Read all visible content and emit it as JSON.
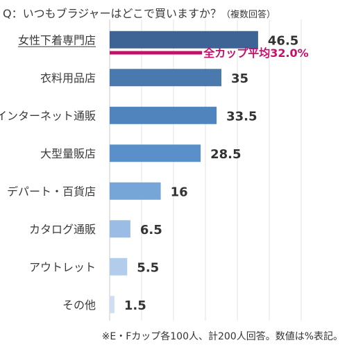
{
  "question": "Q：いつもブラジャーはどこで買いますか？",
  "question_note": "（複数回答）",
  "footnote": "※E・Fカップ各100人、計200人回答。数値は%表記。",
  "chart_data": {
    "type": "bar",
    "orientation": "horizontal",
    "categories": [
      "女性下着専門店",
      "衣料用品店",
      "インターネット通販",
      "大型量販店",
      "デパート・百貨店",
      "カタログ通販",
      "アウトレット",
      "その他"
    ],
    "values": [
      46.5,
      35,
      33.5,
      28.5,
      16,
      6.5,
      5.5,
      1.5
    ],
    "value_labels": [
      "46.5",
      "35",
      "33.5",
      "28.5",
      "16",
      "6.5",
      "5.5",
      "1.5"
    ],
    "highlight_category": "女性下着専門店",
    "bar_colors": [
      "#3d6494",
      "#4a79ad",
      "#4f84bd",
      "#5990c9",
      "#76a5d8",
      "#9bbde5",
      "#b2cdeb",
      "#cfdff2"
    ],
    "reference_line": {
      "label": "全カップ平均32.0%",
      "value": 32.0,
      "color": "#c4106b"
    },
    "xlim": [
      0,
      60
    ],
    "grid": true,
    "xlabel": "",
    "ylabel": ""
  }
}
